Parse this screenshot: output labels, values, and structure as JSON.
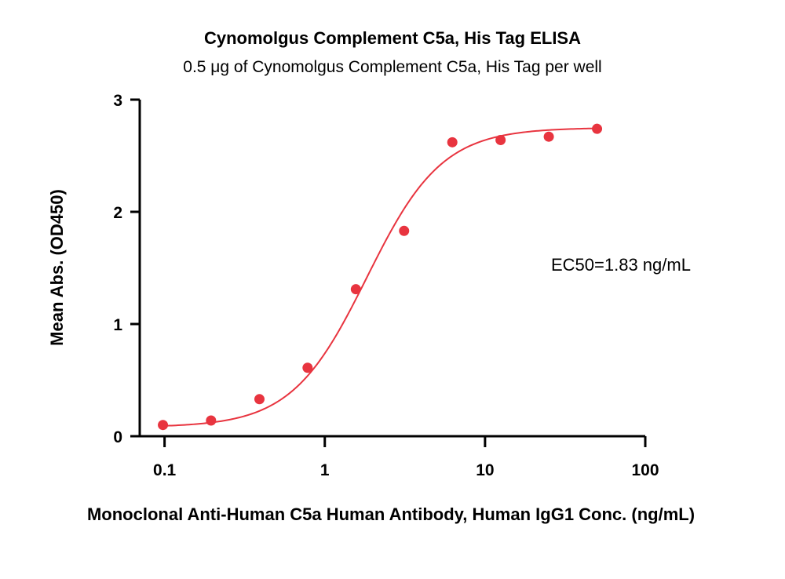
{
  "chart_data": {
    "type": "scatter",
    "title": "Cynomolgus Complement C5a, His Tag ELISA",
    "subtitle": "0.5 μg of Cynomolgus Complement C5a, His Tag per well",
    "xlabel": "Monoclonal Anti-Human C5a Human Antibody, Human IgG1 Conc. (ng/mL)",
    "ylabel": "Mean Abs. (OD450)",
    "x_scale": "log",
    "xlim": [
      0.07,
      100
    ],
    "ylim": [
      0,
      3
    ],
    "x_ticks": [
      0.1,
      1,
      10,
      100
    ],
    "x_tick_labels": [
      "0.1",
      "1",
      "10",
      "100"
    ],
    "y_ticks": [
      0,
      1,
      2,
      3
    ],
    "y_tick_labels": [
      "0",
      "1",
      "2",
      "3"
    ],
    "grid": false,
    "color": "#e8343f",
    "series": [
      {
        "x": [
          0.0977,
          0.195,
          0.391,
          0.781,
          1.563,
          3.125,
          6.25,
          12.5,
          25,
          50
        ],
        "y": [
          0.1,
          0.14,
          0.33,
          0.61,
          1.31,
          1.83,
          2.62,
          2.64,
          2.67,
          2.74
        ]
      }
    ],
    "fit_curve": {
      "model": "4PL",
      "bottom": 0.08,
      "top": 2.75,
      "ec50": 1.83,
      "hill": 1.85
    },
    "annotation": "EC50=1.83 ng/mL"
  }
}
